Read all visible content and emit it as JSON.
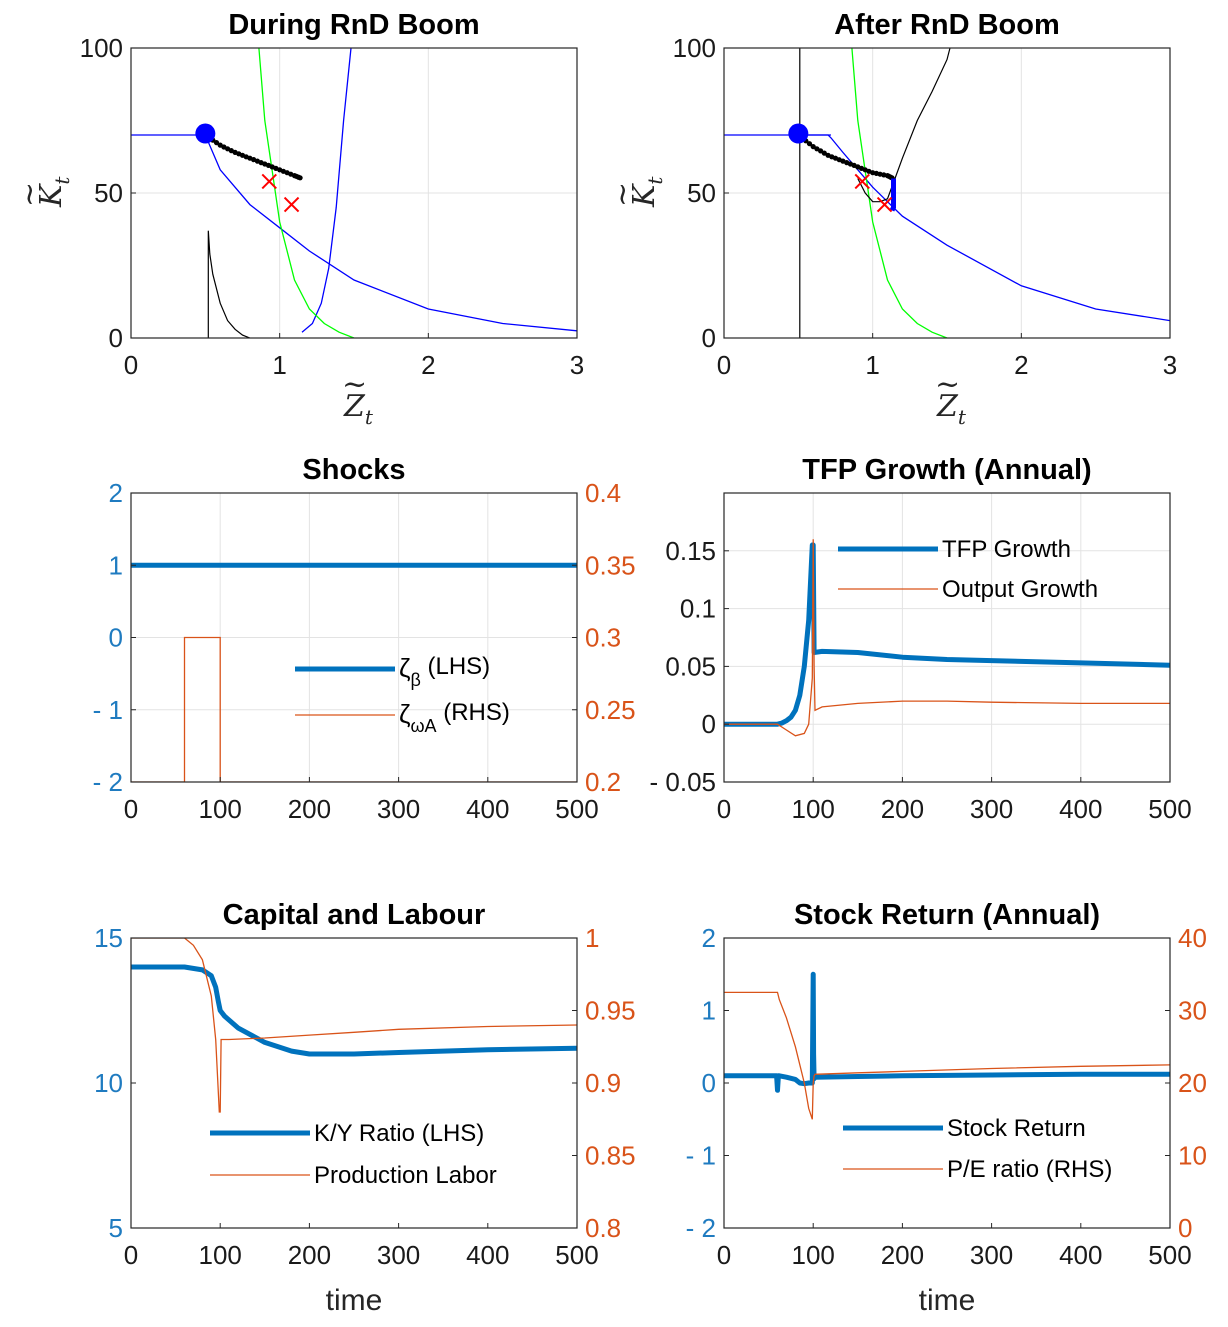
{
  "colors": {
    "blue": "#0072bd",
    "orange": "#d95319",
    "navy": "#0000ff",
    "green": "#00ff00",
    "black": "#000000",
    "red": "#ff0000"
  },
  "chart_data": [
    {
      "id": "p1",
      "type": "line",
      "title": "During RnD Boom",
      "xlabel": "Z",
      "ylabel": "K",
      "xlabel_sub": "t",
      "ylabel_sub": "t",
      "xlim": [
        0,
        3
      ],
      "ylim": [
        0,
        100
      ],
      "xticks": [
        0,
        1,
        2,
        3
      ],
      "yticks": [
        0,
        50,
        100
      ],
      "grid": true,
      "series": [
        {
          "style": "navy",
          "x": [
            0,
            0.5,
            0.6,
            0.8,
            1.0,
            1.2,
            1.5,
            2.0,
            2.5,
            3.0
          ],
          "y": [
            70,
            70,
            58,
            46,
            38,
            30,
            20,
            10,
            5,
            2.5
          ]
        },
        {
          "style": "navy",
          "x": [
            1.15,
            1.22,
            1.28,
            1.33,
            1.38,
            1.43,
            1.48
          ],
          "y": [
            2,
            5,
            12,
            24,
            45,
            75,
            100
          ]
        },
        {
          "style": "green",
          "x": [
            0.86,
            0.9,
            1.0,
            1.1,
            1.2,
            1.3,
            1.4,
            1.5
          ],
          "y": [
            100,
            75,
            40,
            20,
            10,
            5,
            2,
            0
          ]
        },
        {
          "style": "black",
          "x": [
            0.52,
            0.52,
            0.53,
            0.55,
            0.6,
            0.65,
            0.7,
            0.75,
            0.8
          ],
          "y": [
            0,
            37,
            29,
            22,
            12,
            6,
            3,
            1,
            0
          ]
        },
        {
          "style": "dots",
          "x": [
            0.5,
            0.6,
            0.7,
            0.8,
            0.9,
            1.0,
            1.1,
            1.15
          ],
          "y": [
            70,
            66.5,
            64,
            62,
            60,
            58,
            56,
            55
          ]
        },
        {
          "style": "marker",
          "x": [
            0.5
          ],
          "y": [
            70.5
          ]
        },
        {
          "style": "cross",
          "x": [
            0.93,
            1.08
          ],
          "y": [
            54,
            46
          ]
        }
      ]
    },
    {
      "id": "p2",
      "type": "line",
      "title": "After RnD Boom",
      "xlabel": "Z",
      "ylabel": "K",
      "xlabel_sub": "t",
      "ylabel_sub": "t",
      "xlim": [
        0,
        3
      ],
      "ylim": [
        0,
        100
      ],
      "xticks": [
        0,
        1,
        2,
        3
      ],
      "yticks": [
        0,
        50,
        100
      ],
      "grid": true,
      "series": [
        {
          "style": "navy",
          "x": [
            0,
            0.7,
            0.72,
            0.8,
            0.9,
            1.0,
            1.1,
            1.2,
            1.5,
            2.0,
            2.5,
            3.0
          ],
          "y": [
            70,
            70,
            69,
            64,
            58,
            52,
            47,
            42,
            32,
            18,
            10,
            6
          ]
        },
        {
          "style": "navy",
          "x": [
            0.5,
            0.72
          ],
          "y": [
            70,
            70
          ]
        },
        {
          "style": "green",
          "x": [
            0.86,
            0.9,
            1.0,
            1.1,
            1.2,
            1.3,
            1.4,
            1.5
          ],
          "y": [
            100,
            75,
            40,
            20,
            10,
            5,
            2,
            0
          ]
        },
        {
          "style": "black",
          "x": [
            0.51,
            0.51
          ],
          "y": [
            0,
            100
          ]
        },
        {
          "style": "black",
          "x": [
            0.9,
            0.95,
            1.0,
            1.05,
            1.1,
            1.15,
            1.2,
            1.3,
            1.4,
            1.5,
            1.52
          ],
          "y": [
            55,
            50,
            47,
            47,
            48,
            55,
            62,
            75,
            85,
            96,
            100
          ]
        },
        {
          "style": "dots",
          "x": [
            0.5,
            0.6,
            0.7,
            0.8,
            0.9,
            1.0,
            1.1,
            1.14
          ],
          "y": [
            70,
            66,
            63,
            61,
            59,
            57,
            56,
            55
          ]
        },
        {
          "style": "thickblue",
          "x": [
            1.14,
            1.14,
            1.13
          ],
          "y": [
            55,
            45,
            44
          ]
        },
        {
          "style": "marker",
          "x": [
            0.5
          ],
          "y": [
            70.5
          ]
        },
        {
          "style": "cross",
          "x": [
            0.93,
            1.08
          ],
          "y": [
            54,
            46
          ]
        }
      ]
    },
    {
      "id": "p3",
      "type": "line",
      "title": "Shocks",
      "xlim": [
        0,
        500
      ],
      "ylim": [
        -2,
        2
      ],
      "ylim_right": [
        0.2,
        0.4
      ],
      "xticks": [
        0,
        100,
        200,
        300,
        400,
        500
      ],
      "yticks": [
        -2,
        -1,
        0,
        1,
        2
      ],
      "yticks_right": [
        0.2,
        0.25,
        0.3,
        0.35,
        0.4
      ],
      "ytick_labels": [
        "- 2",
        "- 1",
        "0",
        "1",
        "2"
      ],
      "ytick_labels_right": [
        "0.2",
        "0.25",
        "0.3",
        "0.35",
        "0.4"
      ],
      "grid": true,
      "legend": "center-right",
      "series": [
        {
          "name": "ζβ (LHS)",
          "axis": "left",
          "style": "thick",
          "x": [
            0,
            500
          ],
          "y": [
            1,
            1
          ]
        },
        {
          "name": "ζωA (RHS)",
          "axis": "right",
          "style": "thin",
          "x": [
            0,
            60,
            60,
            100,
            100,
            500
          ],
          "y": [
            0.2,
            0.2,
            0.3,
            0.3,
            0.2,
            0.2
          ]
        }
      ],
      "legend_entries": [
        {
          "base": "ζ",
          "sub": "β",
          "rest": " (LHS)"
        },
        {
          "base": "ζ",
          "sub": "ωA",
          "rest": " (RHS)"
        }
      ]
    },
    {
      "id": "p4",
      "type": "line",
      "title": "TFP Growth (Annual)",
      "xlim": [
        0,
        500
      ],
      "ylim": [
        -0.05,
        0.2
      ],
      "xticks": [
        0,
        100,
        200,
        300,
        400,
        500
      ],
      "yticks": [
        -0.05,
        0,
        0.05,
        0.1,
        0.15
      ],
      "ytick_labels": [
        "- 0.05",
        "0",
        "0.05",
        "0.1",
        "0.15"
      ],
      "grid": true,
      "legend": "top-right",
      "series": [
        {
          "name": "TFP Growth",
          "axis": "left",
          "style": "thick",
          "x": [
            0,
            60,
            65,
            70,
            75,
            80,
            85,
            90,
            95,
            99,
            100,
            101,
            110,
            150,
            200,
            250,
            300,
            400,
            500
          ],
          "y": [
            0,
            0,
            0.001,
            0.003,
            0.006,
            0.012,
            0.025,
            0.05,
            0.09,
            0.155,
            0.155,
            0.062,
            0.063,
            0.062,
            0.058,
            0.056,
            0.055,
            0.053,
            0.051
          ]
        },
        {
          "name": "Output Growth",
          "axis": "left",
          "style": "thin",
          "x": [
            0,
            60,
            70,
            80,
            90,
            95,
            99,
            100,
            101,
            102,
            110,
            150,
            200,
            250,
            300,
            400,
            500
          ],
          "y": [
            0,
            0,
            -0.005,
            -0.01,
            -0.008,
            0,
            0.04,
            0.16,
            0.05,
            0.012,
            0.015,
            0.018,
            0.02,
            0.02,
            0.019,
            0.018,
            0.018
          ]
        }
      ]
    },
    {
      "id": "p5",
      "type": "line",
      "title": "Capital and Labour",
      "xlabel": "time",
      "xlim": [
        0,
        500
      ],
      "ylim": [
        5,
        15
      ],
      "ylim_right": [
        0.8,
        1
      ],
      "xticks": [
        0,
        100,
        200,
        300,
        400,
        500
      ],
      "yticks": [
        5,
        10,
        15
      ],
      "yticks_right": [
        0.8,
        0.85,
        0.9,
        0.95,
        1
      ],
      "ytick_labels": [
        "5",
        "10",
        "15"
      ],
      "ytick_labels_right": [
        "0.8",
        "0.85",
        "0.9",
        "0.95",
        "1"
      ],
      "grid": false,
      "legend": "center-right",
      "series": [
        {
          "name": "K/Y Ratio (LHS)",
          "axis": "left",
          "style": "thick",
          "x": [
            0,
            60,
            80,
            90,
            95,
            98,
            100,
            105,
            120,
            150,
            180,
            200,
            250,
            300,
            400,
            500
          ],
          "y": [
            14,
            14,
            13.9,
            13.7,
            13.3,
            12.8,
            12.5,
            12.3,
            11.9,
            11.4,
            11.1,
            11,
            11,
            11.05,
            11.15,
            11.2
          ]
        },
        {
          "name": "Production Labor",
          "axis": "right",
          "style": "thin",
          "x": [
            0,
            60,
            70,
            80,
            90,
            95,
            99,
            100,
            101,
            110,
            150,
            200,
            250,
            300,
            400,
            500
          ],
          "y": [
            1,
            1,
            0.995,
            0.985,
            0.96,
            0.93,
            0.88,
            0.88,
            0.93,
            0.93,
            0.931,
            0.933,
            0.935,
            0.937,
            0.939,
            0.94
          ]
        }
      ]
    },
    {
      "id": "p6",
      "type": "line",
      "title": "Stock Return (Annual)",
      "xlabel": "time",
      "xlim": [
        0,
        500
      ],
      "ylim": [
        -2,
        2
      ],
      "ylim_right": [
        0,
        40
      ],
      "xticks": [
        0,
        100,
        200,
        300,
        400,
        500
      ],
      "yticks": [
        -2,
        -1,
        0,
        1,
        2
      ],
      "yticks_right": [
        0,
        10,
        20,
        30,
        40
      ],
      "ytick_labels": [
        "- 2",
        "- 1",
        "0",
        "1",
        "2"
      ],
      "ytick_labels_right": [
        "0",
        "10",
        "20",
        "30",
        "40"
      ],
      "grid": false,
      "legend": "center-right",
      "series": [
        {
          "name": "Stock Return",
          "axis": "left",
          "style": "thick",
          "x": [
            0,
            58,
            59,
            60,
            61,
            62,
            70,
            80,
            85,
            90,
            95,
            99,
            100,
            100.5,
            101,
            102,
            150,
            200,
            300,
            400,
            500
          ],
          "y": [
            0.1,
            0.1,
            0.1,
            -0.1,
            0.1,
            0.1,
            0.08,
            0.05,
            0,
            -0.01,
            0,
            0,
            1.5,
            0.4,
            0.06,
            0.08,
            0.09,
            0.1,
            0.11,
            0.12,
            0.12
          ]
        },
        {
          "name": "P/E ratio (RHS)",
          "axis": "right",
          "style": "thin",
          "x": [
            0,
            60,
            62,
            70,
            80,
            90,
            95,
            99,
            100,
            101,
            102,
            150,
            200,
            300,
            400,
            500
          ],
          "y": [
            32.5,
            32.5,
            31.5,
            29,
            25,
            20,
            16.5,
            15,
            20,
            21,
            21.2,
            21.4,
            21.6,
            22,
            22.3,
            22.5
          ]
        }
      ]
    }
  ]
}
